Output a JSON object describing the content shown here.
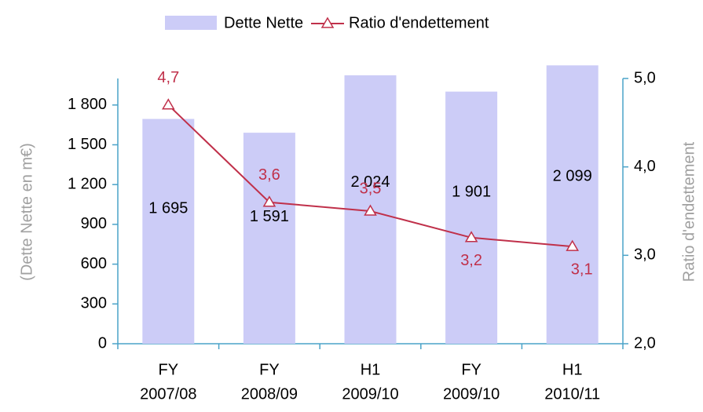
{
  "chart_data": {
    "type": "bar_line",
    "categories": [
      [
        "FY",
        "2007/08"
      ],
      [
        "FY",
        "2008/09"
      ],
      [
        "H1",
        "2009/10"
      ],
      [
        "FY",
        "2009/10"
      ],
      [
        "H1",
        "2010/11"
      ]
    ],
    "series": [
      {
        "name": "Dette Nette",
        "type": "bar",
        "color": "#ccccf7",
        "values": [
          1695,
          1591,
          2024,
          1901,
          2099
        ],
        "value_labels": [
          "1 695",
          "1 591",
          "2 024",
          "1 901",
          "2 099"
        ]
      },
      {
        "name": "Ratio d'endettement",
        "type": "line",
        "axis": "y2",
        "color": "#c0304a",
        "values": [
          4.7,
          3.6,
          3.5,
          3.2,
          3.1
        ],
        "value_labels": [
          "4,7",
          "3,6",
          "3,5",
          "3,2",
          "3,1"
        ]
      }
    ],
    "ylabel": "(Dette Nette en m€)",
    "y2label": "Ratio d'endettement",
    "ylim": [
      0,
      2000
    ],
    "yticks": [
      0,
      300,
      600,
      900,
      {
        "value": 1200,
        "label": "1 200"
      },
      {
        "value": 1500,
        "label": "1 500"
      },
      {
        "value": 1800,
        "label": "1 800"
      }
    ],
    "y2lim": [
      2,
      5
    ],
    "y2ticks": [
      {
        "value": 2,
        "label": "2,0"
      },
      {
        "value": 3,
        "label": "3,0"
      },
      {
        "value": 4,
        "label": "4,0"
      },
      {
        "value": 5,
        "label": "5,0"
      }
    ],
    "legend": "top"
  }
}
